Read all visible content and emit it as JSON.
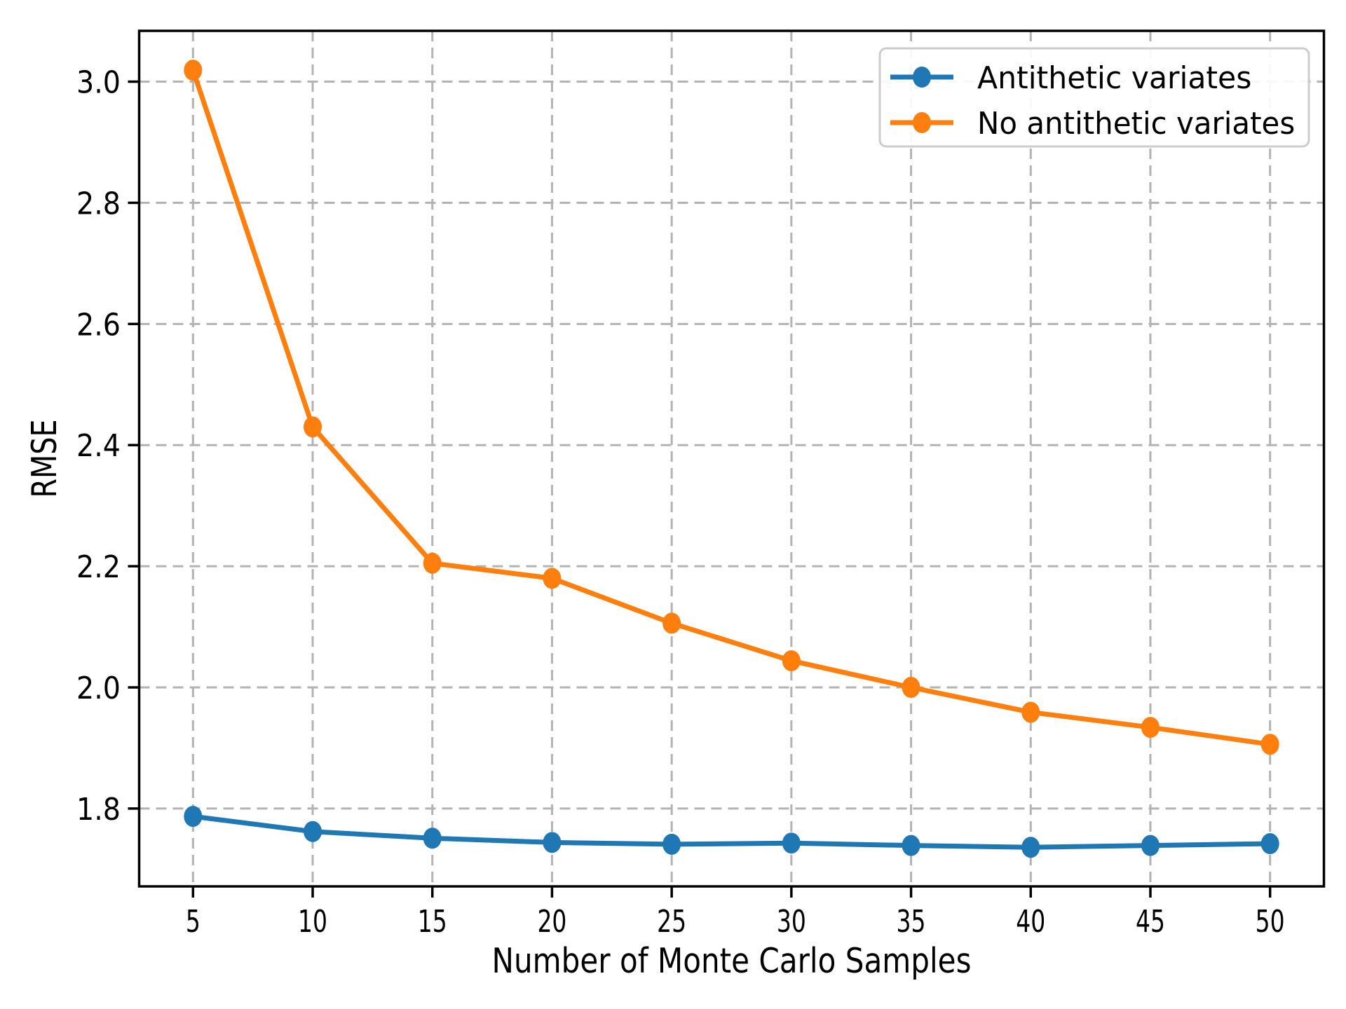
{
  "figure": {
    "background": "#ffffff"
  },
  "chart_data": {
    "type": "line",
    "x": [
      5,
      10,
      15,
      20,
      25,
      30,
      35,
      40,
      45,
      50
    ],
    "series": [
      {
        "name": "Antithetic variates",
        "color": "#1f77b4",
        "values": [
          1.787,
          1.762,
          1.751,
          1.744,
          1.741,
          1.743,
          1.739,
          1.736,
          1.739,
          1.742
        ]
      },
      {
        "name": "No antithetic variates",
        "color": "#ff7f0e",
        "values": [
          3.019,
          2.43,
          2.205,
          2.18,
          2.106,
          2.044,
          2.0,
          1.959,
          1.934,
          1.906
        ]
      }
    ],
    "title": "",
    "xlabel": "Number of Monte Carlo Samples",
    "ylabel": "RMSE",
    "xlim": [
      2.75,
      52.25
    ],
    "ylim": [
      1.6715,
      3.0839
    ],
    "xticks": [
      5,
      10,
      15,
      20,
      25,
      30,
      35,
      40,
      45,
      50
    ],
    "yticks": [
      1.8,
      2.0,
      2.2,
      2.4,
      2.6,
      2.8,
      3.0
    ],
    "grid": true,
    "grid_style": "dashed",
    "legend": {
      "position": "upper right",
      "entries": [
        "Antithetic variates",
        "No antithetic variates"
      ]
    }
  },
  "colors": {
    "grid": "#b3b3b3",
    "axis": "#000000",
    "text": "#000000",
    "legend_border": "#cccccc",
    "legend_background": "#ffffff"
  }
}
